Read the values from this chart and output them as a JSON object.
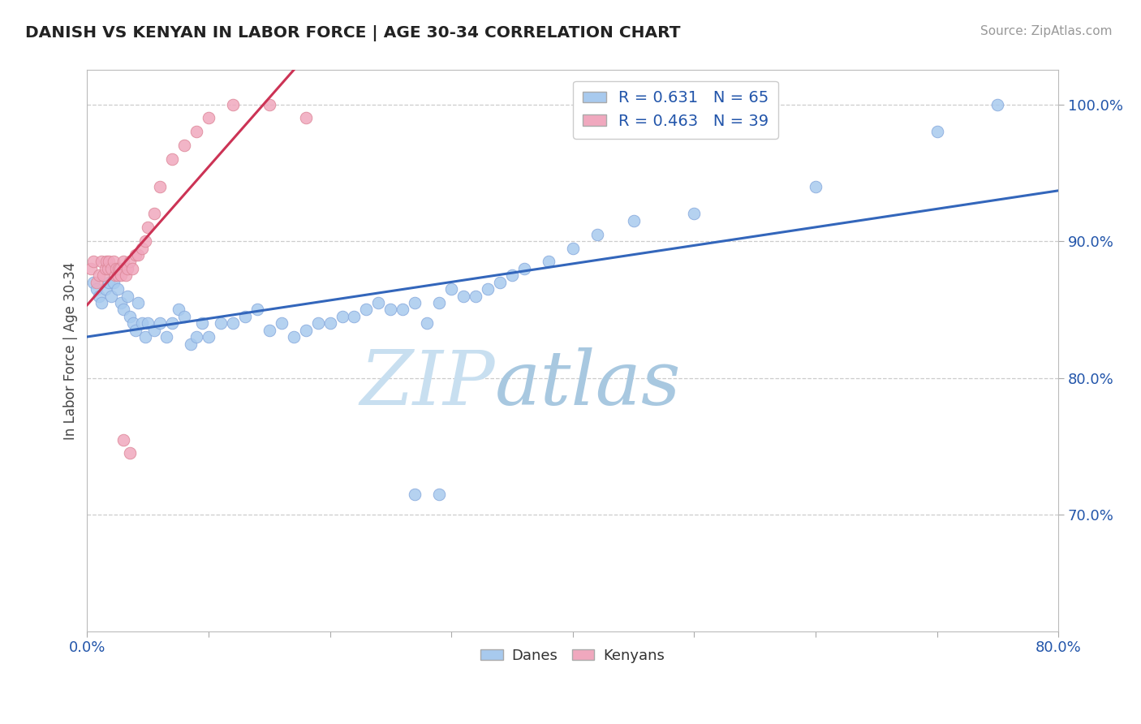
{
  "title": "DANISH VS KENYAN IN LABOR FORCE | AGE 30-34 CORRELATION CHART",
  "source_text": "Source: ZipAtlas.com",
  "ylabel": "In Labor Force | Age 30-34",
  "xlim": [
    0.0,
    0.8
  ],
  "ylim": [
    0.615,
    1.025
  ],
  "xticks": [
    0.0,
    0.1,
    0.2,
    0.3,
    0.4,
    0.5,
    0.6,
    0.7,
    0.8
  ],
  "xtick_labels": [
    "0.0%",
    "",
    "",
    "",
    "",
    "",
    "",
    "",
    "80.0%"
  ],
  "yticks": [
    0.7,
    0.8,
    0.9,
    1.0
  ],
  "ytick_labels": [
    "70.0%",
    "80.0%",
    "90.0%",
    "100.0%"
  ],
  "legend_r_danish": "R = 0.631",
  "legend_n_danish": "N = 65",
  "legend_r_kenyan": "R = 0.463",
  "legend_n_kenyan": "N = 39",
  "danish_color": "#a8caee",
  "danish_edge_color": "#88aadd",
  "kenyan_color": "#f0a8be",
  "kenyan_edge_color": "#dd8899",
  "danish_line_color": "#3366bb",
  "kenyan_line_color": "#cc3355",
  "r_value_color": "#2255aa",
  "danes_scatter_x": [
    0.005,
    0.008,
    0.01,
    0.012,
    0.015,
    0.018,
    0.02,
    0.022,
    0.025,
    0.028,
    0.03,
    0.033,
    0.035,
    0.038,
    0.04,
    0.042,
    0.045,
    0.048,
    0.05,
    0.055,
    0.06,
    0.065,
    0.07,
    0.075,
    0.08,
    0.085,
    0.09,
    0.095,
    0.1,
    0.11,
    0.12,
    0.13,
    0.14,
    0.15,
    0.16,
    0.17,
    0.18,
    0.19,
    0.2,
    0.21,
    0.22,
    0.23,
    0.24,
    0.25,
    0.26,
    0.27,
    0.28,
    0.29,
    0.3,
    0.31,
    0.32,
    0.33,
    0.34,
    0.35,
    0.36,
    0.38,
    0.4,
    0.42,
    0.45,
    0.5,
    0.6,
    0.7,
    0.75,
    0.27,
    0.29
  ],
  "danes_scatter_y": [
    0.87,
    0.865,
    0.86,
    0.855,
    0.865,
    0.87,
    0.86,
    0.87,
    0.865,
    0.855,
    0.85,
    0.86,
    0.845,
    0.84,
    0.835,
    0.855,
    0.84,
    0.83,
    0.84,
    0.835,
    0.84,
    0.83,
    0.84,
    0.85,
    0.845,
    0.825,
    0.83,
    0.84,
    0.83,
    0.84,
    0.84,
    0.845,
    0.85,
    0.835,
    0.84,
    0.83,
    0.835,
    0.84,
    0.84,
    0.845,
    0.845,
    0.85,
    0.855,
    0.85,
    0.85,
    0.855,
    0.84,
    0.855,
    0.865,
    0.86,
    0.86,
    0.865,
    0.87,
    0.875,
    0.88,
    0.885,
    0.895,
    0.905,
    0.915,
    0.92,
    0.94,
    0.98,
    1.0,
    0.715,
    0.715
  ],
  "kenyans_scatter_x": [
    0.003,
    0.005,
    0.008,
    0.01,
    0.012,
    0.013,
    0.015,
    0.016,
    0.017,
    0.018,
    0.02,
    0.022,
    0.023,
    0.024,
    0.025,
    0.026,
    0.027,
    0.028,
    0.03,
    0.032,
    0.033,
    0.035,
    0.037,
    0.04,
    0.042,
    0.045,
    0.048,
    0.05,
    0.055,
    0.06,
    0.07,
    0.08,
    0.09,
    0.1,
    0.12,
    0.15,
    0.18,
    0.03,
    0.035
  ],
  "kenyans_scatter_y": [
    0.88,
    0.885,
    0.87,
    0.875,
    0.885,
    0.875,
    0.88,
    0.885,
    0.88,
    0.885,
    0.88,
    0.885,
    0.875,
    0.88,
    0.875,
    0.88,
    0.88,
    0.875,
    0.885,
    0.875,
    0.88,
    0.885,
    0.88,
    0.89,
    0.89,
    0.895,
    0.9,
    0.91,
    0.92,
    0.94,
    0.96,
    0.97,
    0.98,
    0.99,
    1.0,
    1.0,
    0.99,
    0.755,
    0.745
  ]
}
